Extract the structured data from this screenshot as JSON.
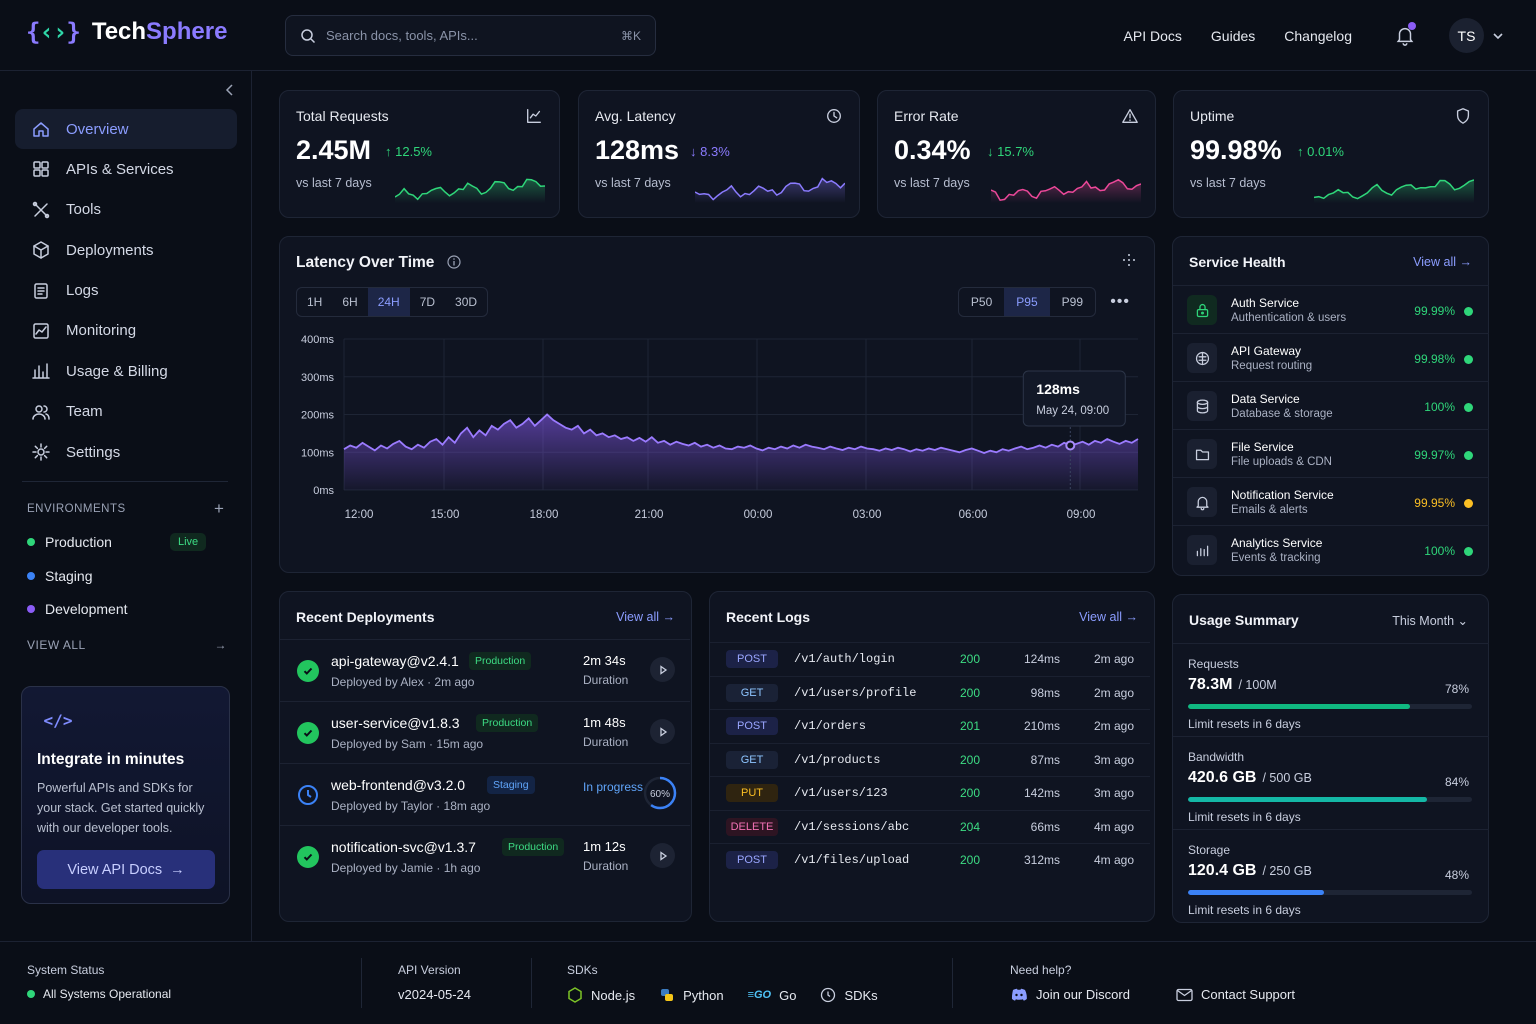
{
  "brand": {
    "mark_left": "{",
    "mark_mid": "‹›",
    "mark_right": "}",
    "name_a": "Tech",
    "name_b": "Sphere"
  },
  "search": {
    "placeholder": "Search docs, tools, APIs...",
    "shortcut": "⌘K"
  },
  "topnav": [
    "API Docs",
    "Guides",
    "Changelog"
  ],
  "user": {
    "initials": "TS"
  },
  "sidebar": {
    "items": [
      {
        "label": "Overview",
        "icon": "home-icon",
        "active": true
      },
      {
        "label": "APIs & Services",
        "icon": "grid-icon"
      },
      {
        "label": "Tools",
        "icon": "tools-icon"
      },
      {
        "label": "Deployments",
        "icon": "box-icon"
      },
      {
        "label": "Logs",
        "icon": "file-icon"
      },
      {
        "label": "Monitoring",
        "icon": "chart-icon"
      },
      {
        "label": "Usage & Billing",
        "icon": "bars-icon"
      },
      {
        "label": "Team",
        "icon": "users-icon"
      },
      {
        "label": "Settings",
        "icon": "gear-icon"
      }
    ],
    "env_title": "ENVIRONMENTS",
    "envs": [
      {
        "label": "Production",
        "color": "#2fd67a"
      },
      {
        "label": "Staging",
        "color": "#3b82f6"
      },
      {
        "label": "Development",
        "color": "#8b5cf6"
      }
    ],
    "live": "Live",
    "view_all": "VIEW ALL",
    "promo": {
      "icon": "</>",
      "title": "Integrate in minutes",
      "desc": "Powerful APIs and SDKs for your stack. Get started quickly with our developer tools.",
      "button": "View API Docs"
    }
  },
  "kpis": [
    {
      "label": "Total Requests",
      "value": "2.45M",
      "delta": "12.5%",
      "dir": "up",
      "sub": "vs last 7 days",
      "color": "#2fd67a",
      "icon": "trend-icon"
    },
    {
      "label": "Avg. Latency",
      "value": "128ms",
      "delta": "8.3%",
      "dir": "down",
      "sub": "vs last 7 days",
      "color": "#8b7bff",
      "icon": "clock-icon"
    },
    {
      "label": "Error Rate",
      "value": "0.34%",
      "delta": "15.7%",
      "dir": "down",
      "sub": "vs last 7 days",
      "color": "#2fd67a",
      "spark": "#ec4899",
      "icon": "warning-icon"
    },
    {
      "label": "Uptime",
      "value": "99.98%",
      "delta": "0.01%",
      "dir": "up",
      "sub": "vs last 7 days",
      "color": "#2fd67a",
      "icon": "shield-icon"
    }
  ],
  "latency": {
    "title": "Latency Over Time",
    "ranges": [
      "1H",
      "6H",
      "24H",
      "7D",
      "30D"
    ],
    "selected_range": "24H",
    "percentiles": [
      "P50",
      "P95",
      "P99"
    ],
    "selected_percentile": "P95",
    "tooltip": {
      "value": "128ms",
      "time": "May 24, 09:00"
    }
  },
  "chart_data": {
    "type": "area",
    "color": "#8b5cf6",
    "y_ticks": [
      "400ms",
      "300ms",
      "200ms",
      "100ms",
      "0ms"
    ],
    "x_ticks": [
      "12:00",
      "15:00",
      "18:00",
      "21:00",
      "00:00",
      "03:00",
      "06:00",
      "09:00"
    ],
    "ylim": [
      0,
      400
    ],
    "values": [
      108,
      118,
      112,
      125,
      115,
      105,
      118,
      110,
      122,
      130,
      115,
      108,
      120,
      112,
      128,
      135,
      120,
      140,
      125,
      150,
      165,
      140,
      158,
      145,
      170,
      160,
      175,
      185,
      165,
      175,
      190,
      170,
      185,
      200,
      185,
      175,
      165,
      160,
      170,
      150,
      160,
      145,
      150,
      140,
      145,
      135,
      140,
      130,
      138,
      128,
      140,
      125,
      130,
      120,
      128,
      122,
      118,
      125,
      115,
      120,
      112,
      118,
      110,
      108,
      115,
      112,
      118,
      110,
      105,
      112,
      108,
      115,
      110,
      118,
      112,
      120,
      115,
      112,
      108,
      115,
      110,
      106,
      112,
      108,
      115,
      110,
      108,
      104,
      110,
      106,
      112,
      108,
      102,
      108,
      104,
      110,
      106,
      112,
      108,
      104,
      100,
      106,
      110,
      104,
      98,
      104,
      100,
      108,
      104,
      110,
      115,
      108,
      112,
      118,
      112,
      120,
      115,
      125,
      118,
      122,
      128,
      120,
      130,
      125,
      135,
      128,
      122,
      130,
      125,
      135
    ]
  },
  "health": {
    "title": "Service Health",
    "view_all": "View all",
    "services": [
      {
        "name": "Auth Service",
        "desc": "Authentication & users",
        "pct": "99.99%",
        "color": "#2fd67a",
        "icon": "lock-icon"
      },
      {
        "name": "API Gateway",
        "desc": "Request routing",
        "pct": "99.98%",
        "color": "#2fd67a",
        "icon": "network-icon"
      },
      {
        "name": "Data Service",
        "desc": "Database & storage",
        "pct": "100%",
        "color": "#2fd67a",
        "icon": "database-icon"
      },
      {
        "name": "File Service",
        "desc": "File uploads & CDN",
        "pct": "99.97%",
        "color": "#2fd67a",
        "icon": "folder-icon"
      },
      {
        "name": "Notification Service",
        "desc": "Emails & alerts",
        "pct": "99.95%",
        "color": "#fbbf24",
        "icon": "bell-icon"
      },
      {
        "name": "Analytics Service",
        "desc": "Events & tracking",
        "pct": "100%",
        "color": "#2fd67a",
        "icon": "analytics-icon"
      }
    ]
  },
  "deployments": {
    "title": "Recent Deployments",
    "view_all": "View all",
    "items": [
      {
        "name": "api-gateway@v2.4.1",
        "env": "Production",
        "by": "Deployed by Alex",
        "ago": "2m ago",
        "dur": "2m 34s",
        "dur_label": "Duration",
        "status": "done"
      },
      {
        "name": "user-service@v1.8.3",
        "env": "Production",
        "by": "Deployed by Sam",
        "ago": "15m ago",
        "dur": "1m 48s",
        "dur_label": "Duration",
        "status": "done"
      },
      {
        "name": "web-frontend@v3.2.0",
        "env": "Staging",
        "by": "Deployed by Taylor",
        "ago": "18m ago",
        "dur": "In progress",
        "dur_label": "",
        "status": "progress",
        "progress": "60%"
      },
      {
        "name": "notification-svc@v1.3.7",
        "env": "Production",
        "by": "Deployed by Jamie",
        "ago": "1h ago",
        "dur": "1m 12s",
        "dur_label": "Duration",
        "status": "done"
      }
    ]
  },
  "logs": {
    "title": "Recent Logs",
    "view_all": "View all",
    "rows": [
      {
        "method": "POST",
        "path": "/v1/auth/login",
        "code": "200",
        "ms": "124ms",
        "ago": "2m ago"
      },
      {
        "method": "GET",
        "path": "/v1/users/profile",
        "code": "200",
        "ms": "98ms",
        "ago": "2m ago"
      },
      {
        "method": "POST",
        "path": "/v1/orders",
        "code": "201",
        "ms": "210ms",
        "ago": "2m ago"
      },
      {
        "method": "GET",
        "path": "/v1/products",
        "code": "200",
        "ms": "87ms",
        "ago": "3m ago"
      },
      {
        "method": "PUT",
        "path": "/v1/users/123",
        "code": "200",
        "ms": "142ms",
        "ago": "3m ago"
      },
      {
        "method": "DELETE",
        "path": "/v1/sessions/abc",
        "code": "204",
        "ms": "66ms",
        "ago": "4m ago"
      },
      {
        "method": "POST",
        "path": "/v1/files/upload",
        "code": "200",
        "ms": "312ms",
        "ago": "4m ago"
      }
    ]
  },
  "usage": {
    "title": "Usage Summary",
    "period": "This Month",
    "items": [
      {
        "label": "Requests",
        "value": "78.3M",
        "of": "/ 100M",
        "pct": "78%",
        "fill": 0.78,
        "color": "#10b981",
        "reset": "Limit resets in 6 days"
      },
      {
        "label": "Bandwidth",
        "value": "420.6 GB",
        "of": "/ 500 GB",
        "pct": "84%",
        "fill": 0.84,
        "color": "#14b8a6",
        "reset": "Limit resets in 6 days"
      },
      {
        "label": "Storage",
        "value": "120.4 GB",
        "of": "/ 250 GB",
        "pct": "48%",
        "fill": 0.48,
        "color": "#3b82f6",
        "reset": "Limit resets in 6 days"
      }
    ]
  },
  "footer": {
    "status_label": "System Status",
    "status": "All Systems Operational",
    "version_label": "API Version",
    "version": "v2024-05-24",
    "sdk_label": "SDKs",
    "sdks": [
      "Node.js",
      "Python",
      "Go",
      "SDKs"
    ],
    "help_label": "Need help?",
    "discord": "Join our Discord",
    "support": "Contact Support"
  }
}
